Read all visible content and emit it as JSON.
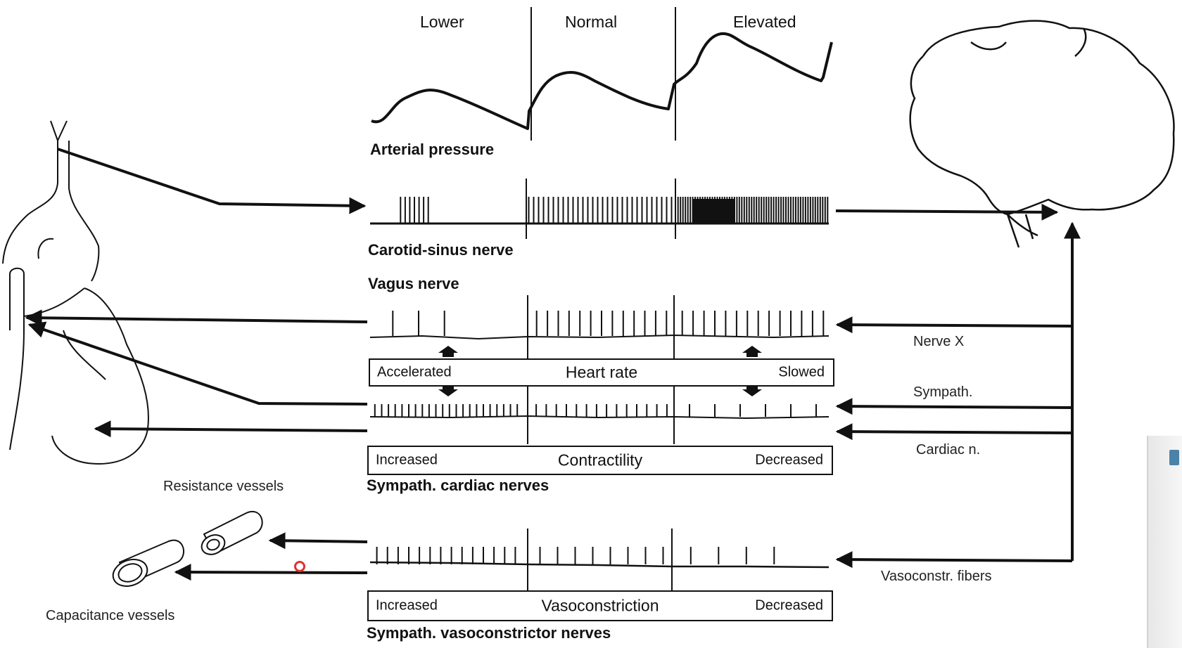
{
  "columns": [
    "Lower",
    "Normal",
    "Elevated"
  ],
  "traces": {
    "arterial": "Arterial pressure",
    "carotid": "Carotid-sinus nerve",
    "vagus": "Vagus nerve",
    "cardiac": "Sympath. cardiac nerves",
    "vasoconstrictor": "Sympath. vasoconstrictor nerves"
  },
  "boxes": {
    "heart_rate": {
      "left": "Accelerated",
      "center": "Heart rate",
      "right": "Slowed"
    },
    "contractility": {
      "left": "Increased",
      "center": "Contractility",
      "right": "Decreased"
    },
    "vasoconstriction": {
      "left": "Increased",
      "center": "Vasoconstriction",
      "right": "Decreased"
    }
  },
  "right_labels": {
    "nerve_x": "Nerve X",
    "sympath": "Sympath.",
    "cardiac_n": "Cardiac n.",
    "vasoconstr": "Vasoconstr. fibers"
  },
  "vessels": {
    "resistance": "Resistance vessels",
    "capacitance": "Capacitance vessels"
  },
  "spikes": {
    "carotid": [
      7,
      30,
      62
    ],
    "vagus": [
      3,
      13,
      14
    ],
    "cardiac": [
      22,
      14,
      6
    ],
    "vasoconstrictor": [
      14,
      8,
      4
    ]
  },
  "colors": {
    "ink": "#111111",
    "cursor": "#e03030"
  }
}
